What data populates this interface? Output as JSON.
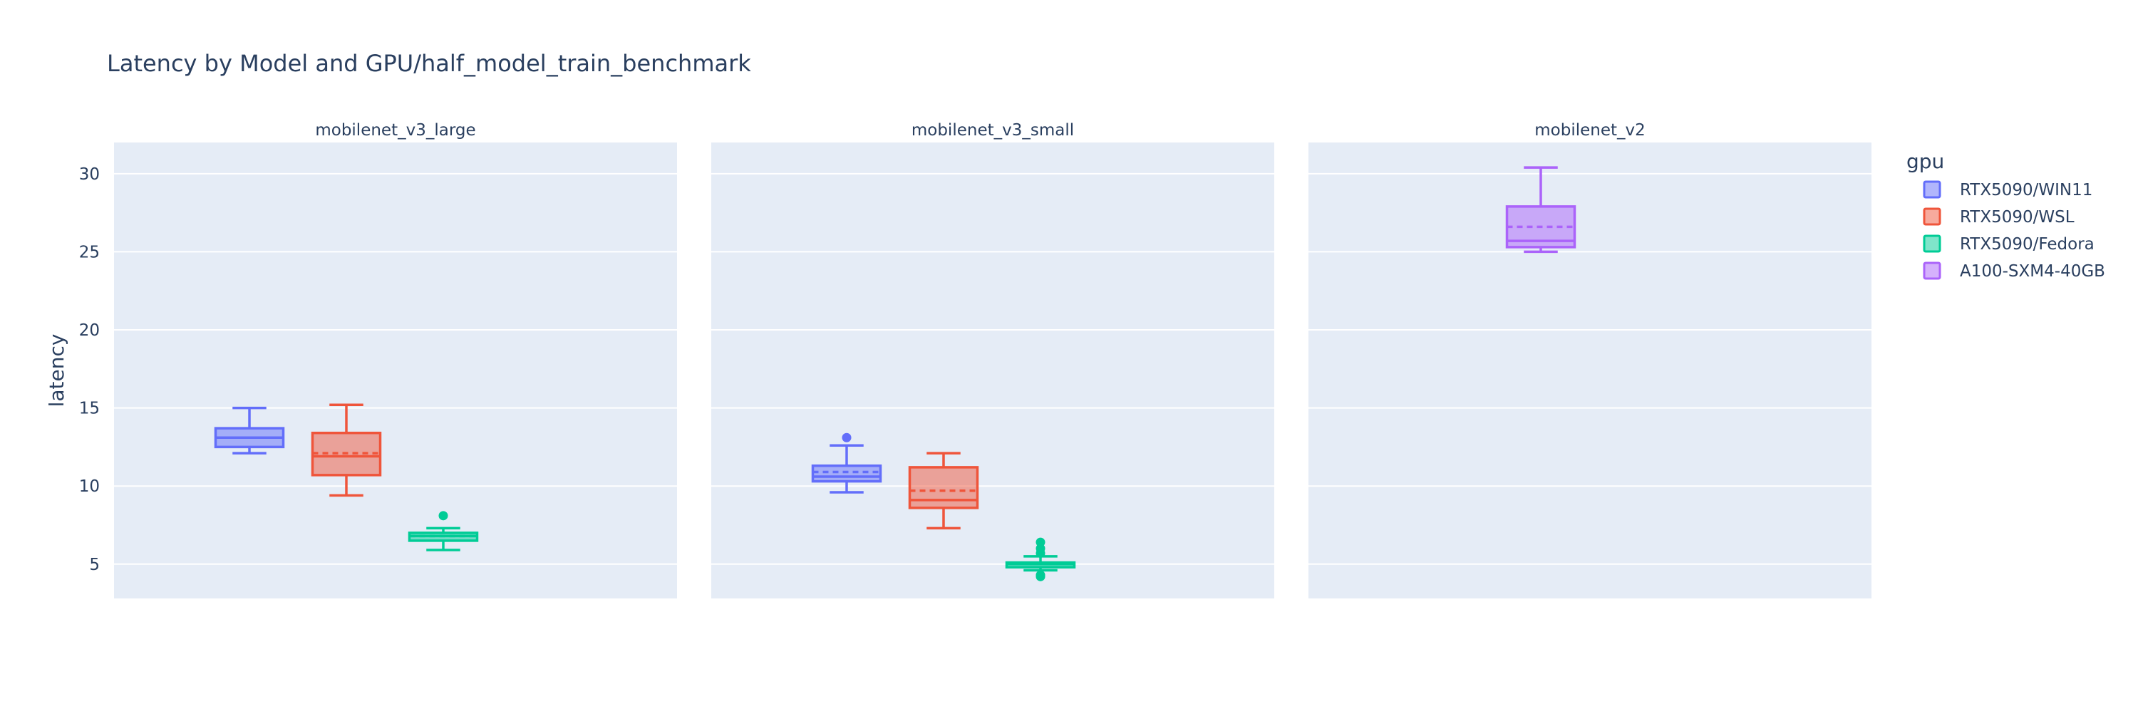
{
  "chart_data": {
    "type": "box",
    "title": "Latency by Model and GPU/half_model_train_benchmark",
    "ylabel": "latency",
    "xlabel": "",
    "ylim": [
      2.8,
      32
    ],
    "yticks": [
      5,
      10,
      15,
      20,
      25,
      30
    ],
    "grid": true,
    "legend_title": "gpu",
    "legend_position": "top-right",
    "facets": [
      "mobilenet_v3_large",
      "mobilenet_v3_small",
      "mobilenet_v2"
    ],
    "series": [
      {
        "name": "RTX5090/WIN11",
        "color": "#636efa"
      },
      {
        "name": "RTX5090/WSL",
        "color": "#ef553b"
      },
      {
        "name": "RTX5090/Fedora",
        "color": "#00cc96"
      },
      {
        "name": "A100-SXM4-40GB",
        "color": "#ab63fa"
      }
    ],
    "boxes": [
      {
        "facet": 0,
        "series": 0,
        "slot": 0,
        "q1": 12.5,
        "median": 13.1,
        "q3": 13.7,
        "lower_fence": 12.1,
        "upper_fence": 15.0,
        "mean": 13.1,
        "outliers": []
      },
      {
        "facet": 0,
        "series": 1,
        "slot": 1,
        "q1": 10.7,
        "median": 11.9,
        "q3": 13.4,
        "lower_fence": 9.4,
        "upper_fence": 15.2,
        "mean": 12.1,
        "outliers": []
      },
      {
        "facet": 0,
        "series": 2,
        "slot": 2,
        "q1": 6.5,
        "median": 6.8,
        "q3": 7.0,
        "lower_fence": 5.9,
        "upper_fence": 7.3,
        "mean": 6.8,
        "outliers": [
          8.1
        ]
      },
      {
        "facet": 1,
        "series": 0,
        "slot": 0,
        "q1": 10.3,
        "median": 10.6,
        "q3": 11.3,
        "lower_fence": 9.6,
        "upper_fence": 12.6,
        "mean": 10.9,
        "outliers": [
          13.1
        ]
      },
      {
        "facet": 1,
        "series": 1,
        "slot": 1,
        "q1": 8.6,
        "median": 9.1,
        "q3": 11.2,
        "lower_fence": 7.3,
        "upper_fence": 12.1,
        "mean": 9.7,
        "outliers": []
      },
      {
        "facet": 1,
        "series": 2,
        "slot": 2,
        "q1": 4.8,
        "median": 5.0,
        "q3": 5.1,
        "lower_fence": 4.6,
        "upper_fence": 5.5,
        "mean": 5.0,
        "outliers": [
          4.2,
          4.3,
          5.7,
          6.0,
          6.4
        ]
      },
      {
        "facet": 2,
        "series": 3,
        "slot": 1,
        "q1": 25.3,
        "median": 25.7,
        "q3": 27.9,
        "lower_fence": 25.0,
        "upper_fence": 30.4,
        "mean": 26.6,
        "outliers": []
      }
    ]
  }
}
